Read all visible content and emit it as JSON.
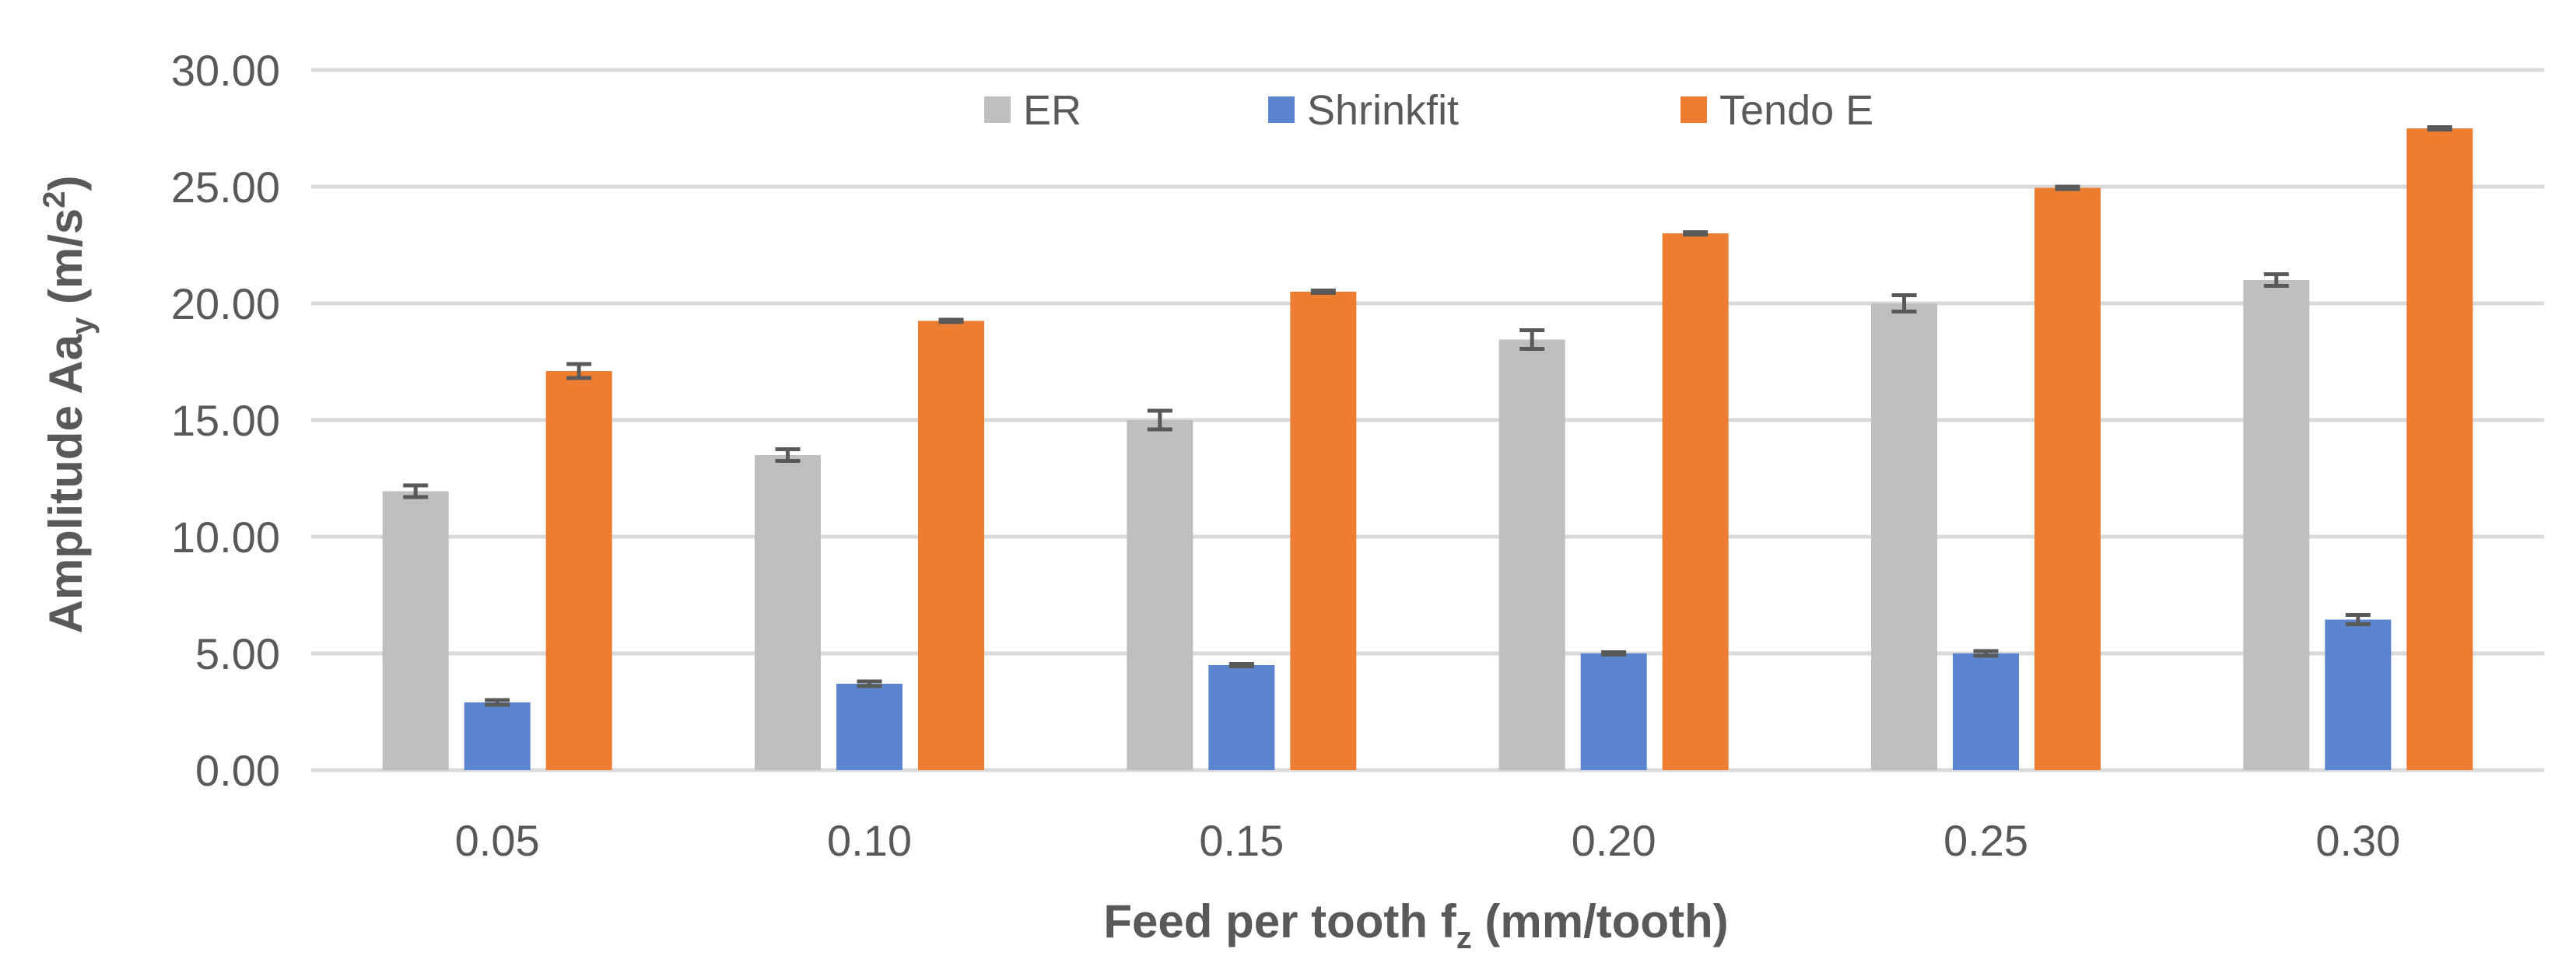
{
  "chart_data": {
    "type": "bar",
    "title": "",
    "xlabel": "Feed per tooth f",
    "xlabel_sub": "z",
    "xlabel_unit": " (mm/tooth)",
    "ylabel": "Amplitude Aa",
    "ylabel_sub": "y",
    "ylabel_unit": " (m/s",
    "ylabel_sup": "2",
    "ylabel_end": ")",
    "ylim": [
      0,
      30
    ],
    "yticks": [
      "0.00",
      "5.00",
      "10.00",
      "15.00",
      "20.00",
      "25.00",
      "30.00"
    ],
    "grid": true,
    "legend_position": "top",
    "categories": [
      "0.05",
      "0.10",
      "0.15",
      "0.20",
      "0.25",
      "0.30"
    ],
    "series": [
      {
        "name": "ER",
        "color": "#bfbfbf",
        "values": [
          11.95,
          13.5,
          15.0,
          18.45,
          20.0,
          21.0
        ],
        "errors": [
          0.25,
          0.25,
          0.4,
          0.4,
          0.35,
          0.25
        ]
      },
      {
        "name": "Shrinkfit",
        "color": "#5b86cf",
        "values": [
          2.9,
          3.7,
          4.5,
          5.0,
          5.0,
          6.45
        ],
        "errors": [
          0.1,
          0.1,
          0.05,
          0.05,
          0.1,
          0.2
        ]
      },
      {
        "name": "Tendo E",
        "color": "#ed7d31",
        "values": [
          17.1,
          19.25,
          20.5,
          23.0,
          24.95,
          27.5
        ],
        "errors": [
          0.3,
          0.05,
          0.05,
          0.05,
          0.05,
          0.05
        ]
      }
    ]
  }
}
